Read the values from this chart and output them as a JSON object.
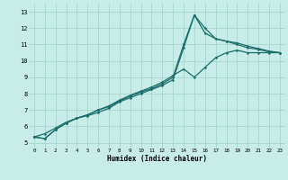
{
  "xlabel": "Humidex (Indice chaleur)",
  "xlim": [
    -0.5,
    23.5
  ],
  "ylim": [
    4.7,
    13.5
  ],
  "xticks": [
    0,
    1,
    2,
    3,
    4,
    5,
    6,
    7,
    8,
    9,
    10,
    11,
    12,
    13,
    14,
    15,
    16,
    17,
    18,
    19,
    20,
    21,
    22,
    23
  ],
  "yticks": [
    5,
    6,
    7,
    8,
    9,
    10,
    11,
    12,
    13
  ],
  "bg_color": "#c8ece8",
  "grid_color": "#a8d8d0",
  "line_color": "#1a6e6a",
  "line1_x": [
    0,
    1,
    2,
    3,
    4,
    5,
    6,
    7,
    8,
    9,
    10,
    11,
    12,
    13,
    14,
    15,
    16,
    17,
    18,
    19,
    20,
    21,
    22,
    23
  ],
  "line1_y": [
    5.35,
    5.25,
    5.8,
    6.2,
    6.5,
    6.65,
    6.85,
    7.1,
    7.5,
    7.75,
    8.0,
    8.25,
    8.5,
    8.85,
    10.8,
    12.8,
    12.0,
    11.35,
    11.2,
    11.0,
    10.8,
    10.7,
    10.55,
    10.5
  ],
  "line2_x": [
    0,
    1,
    2,
    3,
    4,
    5,
    6,
    7,
    8,
    9,
    10,
    11,
    12,
    13,
    14,
    15,
    16,
    17,
    18,
    19,
    20,
    21,
    22,
    23
  ],
  "line2_y": [
    5.35,
    5.25,
    5.8,
    6.2,
    6.5,
    6.7,
    7.0,
    7.2,
    7.55,
    7.85,
    8.1,
    8.3,
    8.6,
    9.0,
    11.0,
    12.8,
    11.7,
    11.35,
    11.2,
    11.1,
    10.9,
    10.75,
    10.6,
    10.5
  ],
  "line3_x": [
    0,
    1,
    2,
    3,
    4,
    5,
    6,
    7,
    8,
    9,
    10,
    11,
    12,
    13,
    14,
    15,
    16,
    17,
    18,
    19,
    20,
    21,
    22,
    23
  ],
  "line3_y": [
    5.35,
    5.55,
    5.9,
    6.25,
    6.5,
    6.7,
    7.0,
    7.25,
    7.6,
    7.9,
    8.15,
    8.4,
    8.7,
    9.1,
    9.5,
    9.0,
    9.6,
    10.2,
    10.5,
    10.65,
    10.5,
    10.5,
    10.5,
    10.5
  ]
}
